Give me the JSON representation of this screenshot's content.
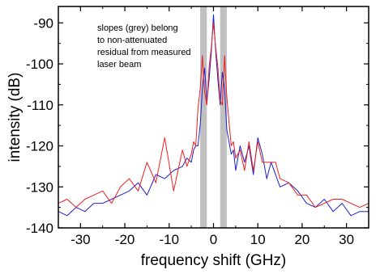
{
  "chart_data": {
    "type": "line",
    "title": "",
    "xlabel": "frequency shift (GHz)",
    "ylabel": "intensity (dB)",
    "xlim": [
      -35,
      35
    ],
    "ylim": [
      -140,
      -86
    ],
    "x_ticks": [
      -30,
      -20,
      -10,
      0,
      10,
      20,
      30
    ],
    "y_ticks": [
      -140,
      -130,
      -120,
      -110,
      -100,
      -90
    ],
    "grid": false,
    "legend": "none",
    "annotation": [
      "slopes (grey) belong",
      "to non-attenuated",
      "residual from measured",
      "laser beam"
    ],
    "shaded_bands": [
      {
        "x_from": -3.0,
        "x_to": -1.5,
        "color": "#c0c0c0"
      },
      {
        "x_from": 1.5,
        "x_to": 3.0,
        "color": "#c0c0c0"
      }
    ],
    "series": [
      {
        "color": "#2020cc",
        "x": [
          -35,
          -33,
          -31,
          -29,
          -27,
          -25,
          -23,
          -21,
          -19,
          -17,
          -15,
          -13,
          -11,
          -9,
          -7,
          -6,
          -5,
          -4.5,
          -4,
          -3.5,
          -3,
          -2.5,
          -2,
          -1.5,
          -1,
          -0.5,
          0,
          0.5,
          1,
          1.5,
          2,
          2.5,
          3,
          3.5,
          4,
          4.5,
          5,
          6,
          7,
          8,
          9,
          10,
          11,
          12,
          13,
          15,
          17,
          19,
          21,
          23,
          25,
          27,
          29,
          31,
          33,
          35
        ],
        "y": [
          -136,
          -137,
          -135,
          -136,
          -134,
          -134,
          -133,
          -132,
          -131,
          -129,
          -132,
          -127,
          -128,
          -126,
          -125,
          -123,
          -124,
          -121,
          -120,
          -120,
          -115,
          -106,
          -101,
          -109,
          -104,
          -97,
          -88,
          -97,
          -104,
          -110,
          -102,
          -106,
          -116,
          -119,
          -122,
          -121,
          -126,
          -120,
          -124,
          -120,
          -127,
          -118,
          -122,
          -128,
          -124,
          -130,
          -129,
          -131,
          -134,
          -135,
          -133,
          -136,
          -134,
          -137,
          -136,
          -136
        ]
      },
      {
        "color": "#ee2020",
        "x": [
          -35,
          -33,
          -31,
          -29,
          -27,
          -25,
          -23,
          -21,
          -19,
          -17,
          -15,
          -13,
          -11,
          -9,
          -8,
          -7,
          -6,
          -5,
          -4.5,
          -4,
          -3.5,
          -3,
          -2.5,
          -2,
          -1.5,
          -1,
          -0.5,
          0,
          0.5,
          1,
          1.5,
          2,
          2.5,
          3,
          3.5,
          4,
          4.5,
          5,
          6,
          7,
          8,
          9,
          10,
          11,
          12,
          13,
          14,
          15,
          17,
          19,
          21,
          23,
          25,
          27,
          29,
          31,
          33,
          35
        ],
        "y": [
          -134,
          -133,
          -135,
          -133,
          -132,
          -131,
          -134,
          -130,
          -128,
          -131,
          -124,
          -129,
          -118,
          -131,
          -126,
          -121,
          -125,
          -122,
          -119,
          -120,
          -111,
          -106,
          -98,
          -107,
          -110,
          -101,
          -96,
          -90,
          -96,
          -101,
          -109,
          -110,
          -98,
          -108,
          -114,
          -120,
          -119,
          -123,
          -121,
          -126,
          -119,
          -126,
          -119,
          -124,
          -124,
          -124,
          -124,
          -128,
          -129,
          -132,
          -132,
          -135,
          -134,
          -133,
          -133,
          -134,
          -135,
          -134
        ]
      }
    ]
  }
}
